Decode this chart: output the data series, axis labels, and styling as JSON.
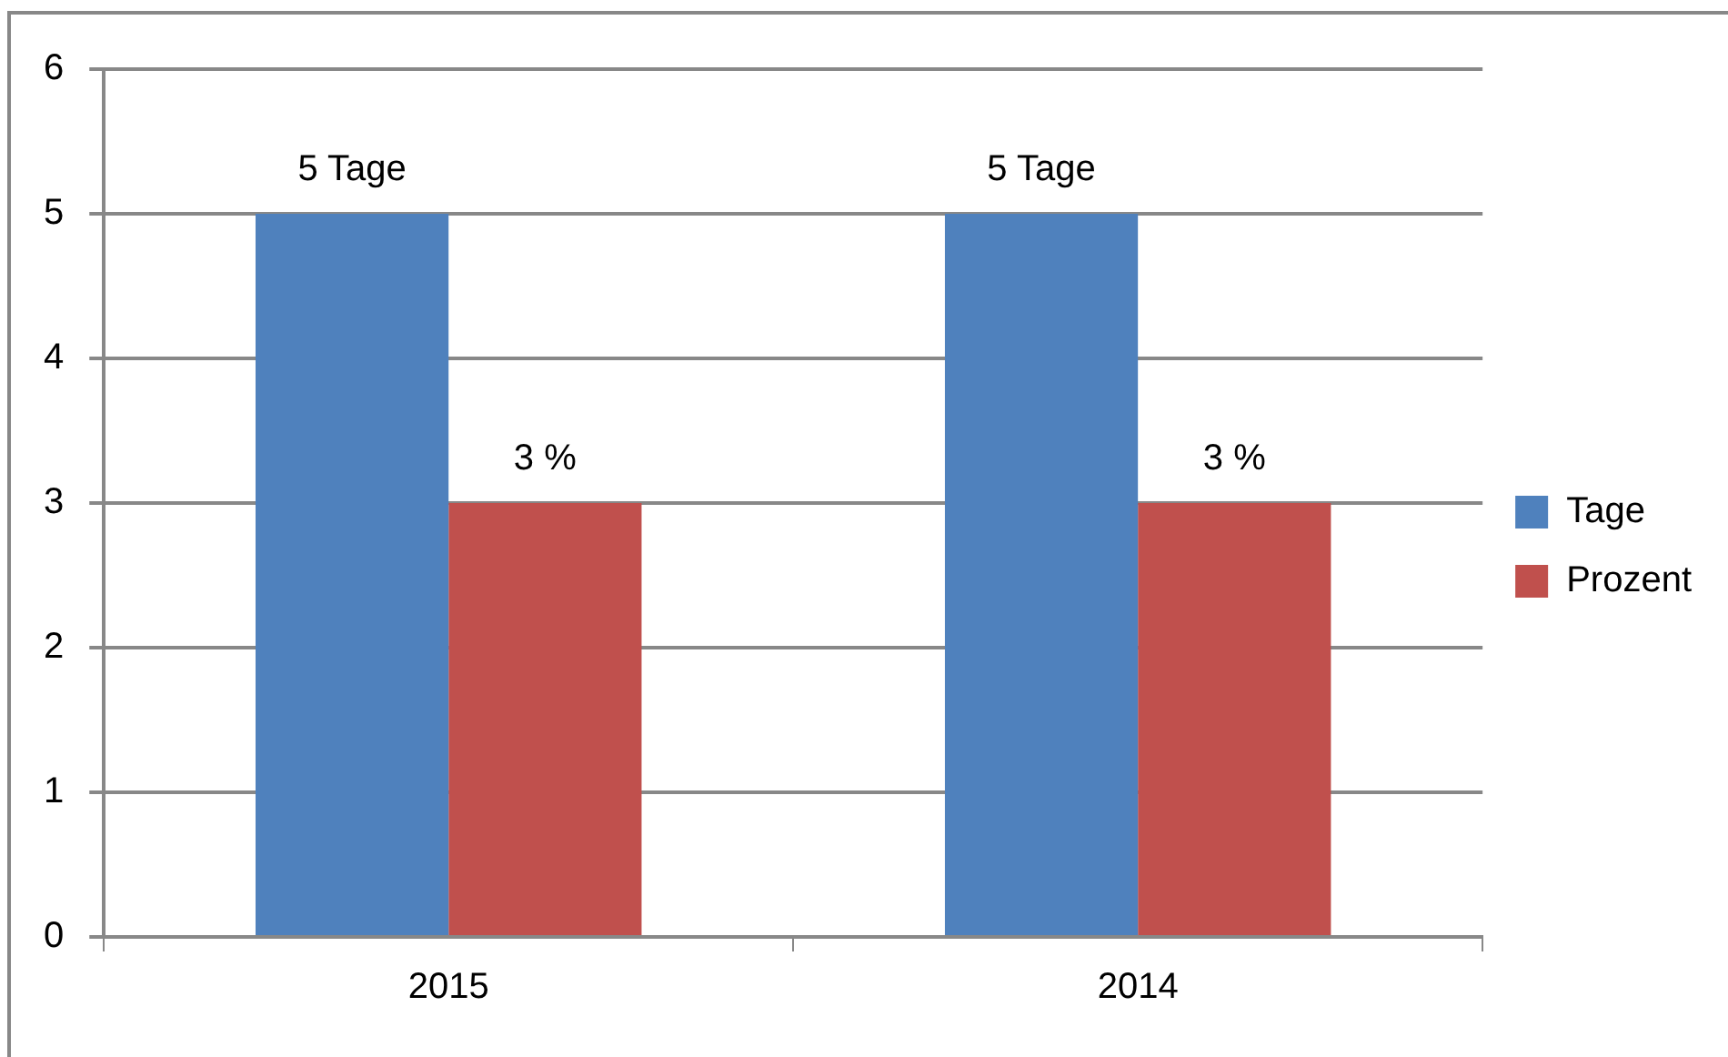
{
  "chart_data": {
    "type": "bar",
    "categories": [
      "2015",
      "2014"
    ],
    "series": [
      {
        "name": "Tage",
        "color": "#4f81bd",
        "values": [
          5,
          5
        ],
        "value_labels": [
          "5 Tage",
          "5 Tage"
        ]
      },
      {
        "name": "Prozent",
        "color": "#c0504d",
        "values": [
          3,
          3
        ],
        "value_labels": [
          "3 %",
          "3 %"
        ]
      }
    ],
    "ylim": [
      0,
      6
    ],
    "yticks": [
      0,
      1,
      2,
      3,
      4,
      5,
      6
    ],
    "grid": "y",
    "legend": "right"
  }
}
